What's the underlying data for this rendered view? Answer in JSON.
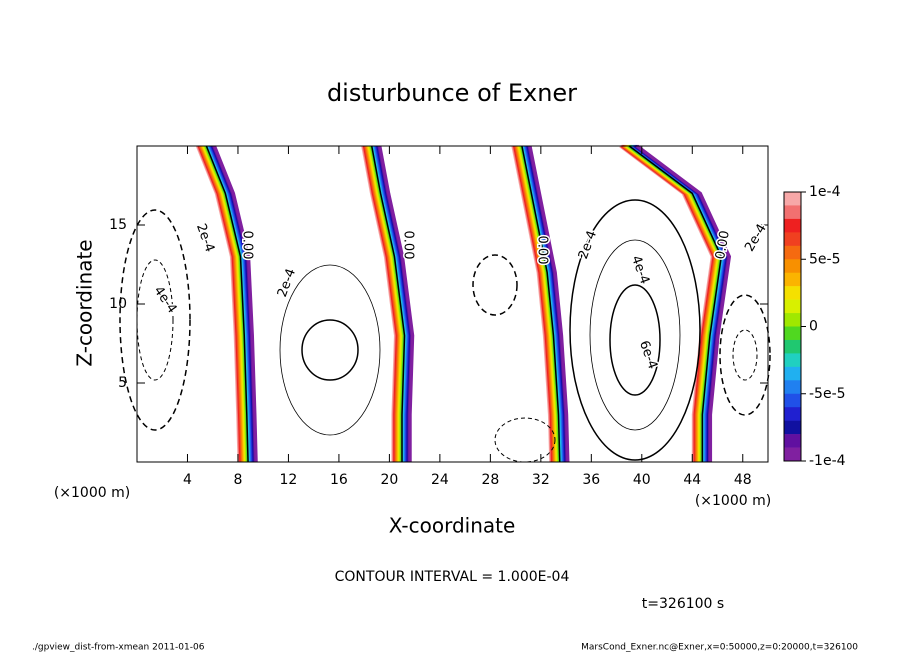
{
  "chart_data": {
    "type": "contour",
    "title": "disturbunce of Exner",
    "x_label": "X-coordinate",
    "y_label": "Z-coordinate",
    "x_unit_left": "(×1000 m)",
    "x_unit_right": "(×1000 m)",
    "xlim": [
      0,
      50
    ],
    "xticks": [
      4,
      8,
      12,
      16,
      20,
      24,
      28,
      32,
      36,
      40,
      44,
      48
    ],
    "ylim": [
      0,
      20
    ],
    "yticks": [
      5,
      10,
      15
    ],
    "colorbar_lim": [
      -0.0001,
      0.0001
    ],
    "colorbar_ticks": [
      {
        "value": 0.0001,
        "label": "1e-4"
      },
      {
        "value": 5e-05,
        "label": "5e-5"
      },
      0,
      {
        "value": -5e-05,
        "label": "-5e-5"
      },
      {
        "value": -0.0001,
        "label": "-1e-4"
      }
    ],
    "colorbar_colors": [
      "#f7a8a8",
      "#f27070",
      "#ee2020",
      "#f04020",
      "#f56a10",
      "#f89000",
      "#fbb400",
      "#f5e000",
      "#d8f000",
      "#a0e800",
      "#50d820",
      "#20c870",
      "#20d0c0",
      "#20b0f0",
      "#2080f0",
      "#2050e8",
      "#2020d0",
      "#1010a0",
      "#6010a0",
      "#8020a0"
    ],
    "contour_labels": [
      "2e-4",
      "4e-4",
      "0.00",
      "2e-4",
      "0.00",
      "0.00",
      "2e-4",
      "4e-4",
      "6e-4",
      "0.00",
      "2e-4"
    ],
    "contour_interval": "CONTOUR INTERVAL = 1.000E-04",
    "time_label": "t=326100 s",
    "footer_left": "./gpview_dist-from-xmean  2011-01-06",
    "footer_right": "MarsCond_Exner.nc@Exner,x=0:50000,z=0:20000,t=326100"
  }
}
